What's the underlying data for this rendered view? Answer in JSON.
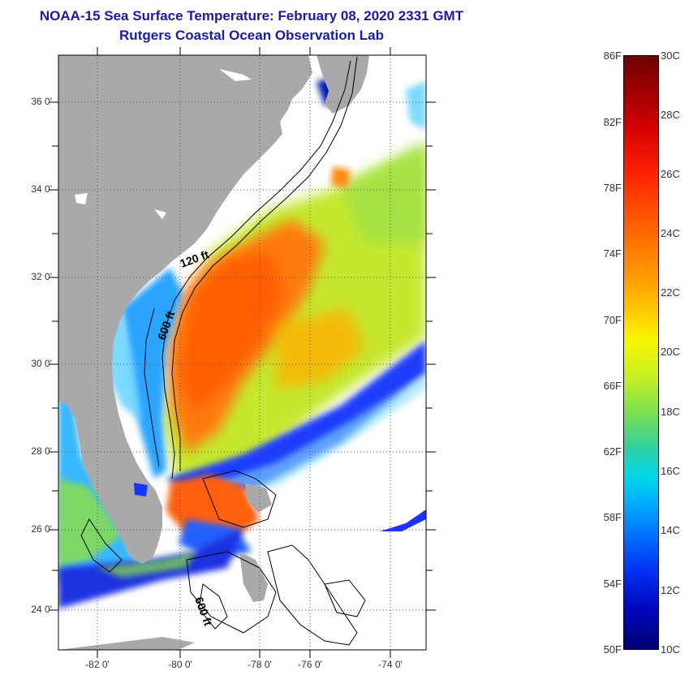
{
  "title": {
    "line1": "NOAA-15 Sea Surface Temperature:  February 08, 2020 2331 GMT",
    "line2": "Rutgers Coastal Ocean Observation Lab"
  },
  "map": {
    "lat_ticks": [
      "36 0'",
      "34 0'",
      "32 0'",
      "30 0'",
      "28 0'",
      "26 0'",
      "24 0'"
    ],
    "lon_ticks": [
      "-82 0'",
      "-80 0'",
      "-78 0'",
      "-76 0'",
      "-74 0'"
    ],
    "contour_labels": [
      "120 ft",
      "600 ft",
      "600 ft"
    ],
    "colors": {
      "land": "#a9a9a9",
      "ocean_nodata": "#ffffff",
      "cold": "#0010c8",
      "warm": "#ff5a00"
    }
  },
  "colorbar": {
    "fahrenheit": [
      "86F",
      "82F",
      "78F",
      "74F",
      "70F",
      "66F",
      "62F",
      "58F",
      "54F",
      "50F"
    ],
    "celsius": [
      "30C",
      "28C",
      "26C",
      "24C",
      "22C",
      "20C",
      "18C",
      "16C",
      "14C",
      "12C",
      "10C"
    ]
  }
}
